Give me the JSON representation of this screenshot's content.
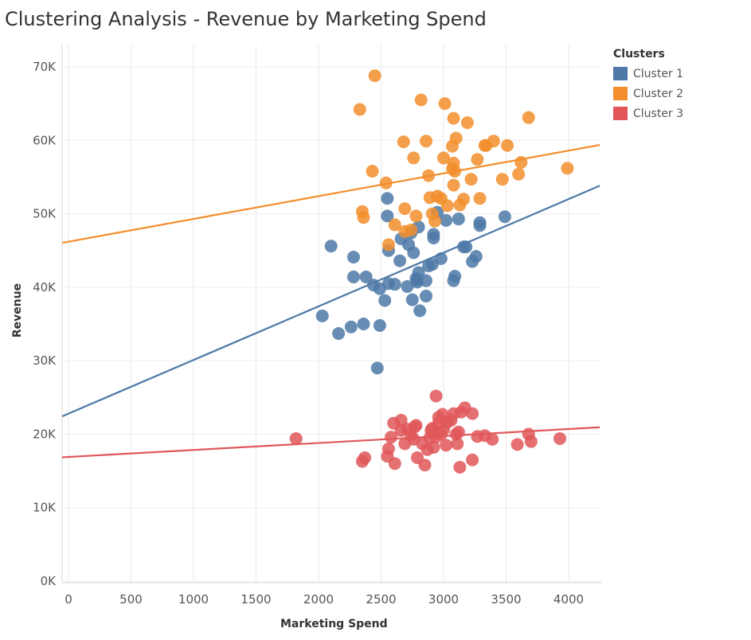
{
  "chart_data": {
    "type": "scatter",
    "title": "Clustering Analysis - Revenue by Marketing Spend",
    "xlabel": "Marketing Spend",
    "ylabel": "Revenue",
    "xlim": [
      -50,
      4250
    ],
    "ylim": [
      -1000,
      72000
    ],
    "x_ticks": [
      0,
      500,
      1000,
      1500,
      2000,
      2500,
      3000,
      3500,
      4000
    ],
    "x_tick_labels": [
      "0",
      "500",
      "1000",
      "1500",
      "2000",
      "2500",
      "3000",
      "3500",
      "4000"
    ],
    "y_ticks": [
      0,
      10000,
      20000,
      30000,
      40000,
      50000,
      60000,
      70000
    ],
    "y_tick_labels": [
      "0K",
      "10K",
      "20K",
      "30K",
      "40K",
      "50K",
      "60K",
      "70K"
    ],
    "grid": true,
    "legend_title": "Clusters",
    "legend_position": "right",
    "series": [
      {
        "name": "Cluster 1",
        "color": "#4e79a7",
        "trend": {
          "intercept": 22800,
          "slope": 7.3
        },
        "points": [
          [
            2100,
            45600
          ],
          [
            2030,
            36100
          ],
          [
            2160,
            33700
          ],
          [
            2260,
            34600
          ],
          [
            2360,
            35000
          ],
          [
            2490,
            34800
          ],
          [
            2470,
            29000
          ],
          [
            2280,
            44100
          ],
          [
            2280,
            41400
          ],
          [
            2380,
            41400
          ],
          [
            2440,
            40300
          ],
          [
            2490,
            39800
          ],
          [
            2530,
            38200
          ],
          [
            2560,
            40500
          ],
          [
            2610,
            40400
          ],
          [
            2650,
            43600
          ],
          [
            2560,
            45000
          ],
          [
            2660,
            46600
          ],
          [
            2720,
            45800
          ],
          [
            2550,
            49700
          ],
          [
            2550,
            52100
          ],
          [
            2760,
            44700
          ],
          [
            2800,
            48200
          ],
          [
            2780,
            41200
          ],
          [
            2800,
            42000
          ],
          [
            2790,
            40700
          ],
          [
            2710,
            40100
          ],
          [
            2750,
            38300
          ],
          [
            2810,
            36800
          ],
          [
            2860,
            38800
          ],
          [
            2860,
            40900
          ],
          [
            2880,
            42900
          ],
          [
            2910,
            43100
          ],
          [
            2980,
            43900
          ],
          [
            2920,
            46700
          ],
          [
            2920,
            47200
          ],
          [
            2950,
            50200
          ],
          [
            3020,
            49100
          ],
          [
            3090,
            41500
          ],
          [
            3080,
            40900
          ],
          [
            3120,
            49300
          ],
          [
            3160,
            45500
          ],
          [
            3180,
            45500
          ],
          [
            3230,
            43500
          ],
          [
            3260,
            44200
          ],
          [
            3290,
            48400
          ],
          [
            3290,
            48800
          ],
          [
            3490,
            49600
          ],
          [
            2790,
            41000
          ],
          [
            2740,
            47400
          ]
        ]
      },
      {
        "name": "Cluster 2",
        "color": "#f28e2b",
        "trend": {
          "intercept": 46200,
          "slope": 3.1
        },
        "points": [
          [
            2330,
            64200
          ],
          [
            2450,
            68800
          ],
          [
            2430,
            55800
          ],
          [
            2350,
            50300
          ],
          [
            2360,
            49500
          ],
          [
            2540,
            54200
          ],
          [
            2560,
            45800
          ],
          [
            2610,
            48500
          ],
          [
            2680,
            59800
          ],
          [
            2690,
            50700
          ],
          [
            2690,
            47600
          ],
          [
            2740,
            47800
          ],
          [
            2760,
            57600
          ],
          [
            2780,
            49700
          ],
          [
            2820,
            65500
          ],
          [
            2860,
            59900
          ],
          [
            2880,
            55200
          ],
          [
            2890,
            52200
          ],
          [
            2910,
            50000
          ],
          [
            2930,
            49000
          ],
          [
            2950,
            52400
          ],
          [
            2980,
            52100
          ],
          [
            3000,
            57600
          ],
          [
            3010,
            65000
          ],
          [
            3030,
            51100
          ],
          [
            3070,
            59200
          ],
          [
            3080,
            56900
          ],
          [
            3090,
            55800
          ],
          [
            3080,
            53900
          ],
          [
            3100,
            60300
          ],
          [
            3080,
            63000
          ],
          [
            3130,
            51200
          ],
          [
            3160,
            52000
          ],
          [
            3190,
            62400
          ],
          [
            3220,
            54700
          ],
          [
            3270,
            57400
          ],
          [
            3290,
            52100
          ],
          [
            3330,
            59300
          ],
          [
            3340,
            59300
          ],
          [
            3400,
            59900
          ],
          [
            3470,
            54700
          ],
          [
            3510,
            59300
          ],
          [
            3600,
            55400
          ],
          [
            3620,
            57000
          ],
          [
            3680,
            63100
          ],
          [
            3990,
            56200
          ],
          [
            3070,
            56100
          ]
        ]
      },
      {
        "name": "Cluster 3",
        "color": "#e15759",
        "trend": {
          "intercept": 16900,
          "slope": 0.95
        },
        "points": [
          [
            1820,
            19400
          ],
          [
            2350,
            16300
          ],
          [
            2370,
            16800
          ],
          [
            2550,
            17000
          ],
          [
            2560,
            18000
          ],
          [
            2580,
            19600
          ],
          [
            2600,
            21500
          ],
          [
            2610,
            16000
          ],
          [
            2660,
            20500
          ],
          [
            2660,
            21900
          ],
          [
            2690,
            18700
          ],
          [
            2710,
            20700
          ],
          [
            2740,
            19800
          ],
          [
            2760,
            19300
          ],
          [
            2770,
            21000
          ],
          [
            2780,
            21200
          ],
          [
            2790,
            16800
          ],
          [
            2830,
            18700
          ],
          [
            2850,
            15800
          ],
          [
            2870,
            17900
          ],
          [
            2890,
            19500
          ],
          [
            2900,
            20500
          ],
          [
            2910,
            20800
          ],
          [
            2920,
            18200
          ],
          [
            2940,
            19600
          ],
          [
            2960,
            21500
          ],
          [
            2960,
            22300
          ],
          [
            2980,
            20000
          ],
          [
            2990,
            22700
          ],
          [
            3000,
            20600
          ],
          [
            3020,
            18500
          ],
          [
            3030,
            21600
          ],
          [
            3060,
            21900
          ],
          [
            3080,
            22800
          ],
          [
            3100,
            20000
          ],
          [
            3110,
            18700
          ],
          [
            3120,
            20300
          ],
          [
            3130,
            15500
          ],
          [
            3140,
            23000
          ],
          [
            3170,
            23600
          ],
          [
            3230,
            16500
          ],
          [
            3230,
            22800
          ],
          [
            3270,
            19700
          ],
          [
            3330,
            19800
          ],
          [
            3390,
            19300
          ],
          [
            3590,
            18600
          ],
          [
            3680,
            20000
          ],
          [
            3700,
            19000
          ],
          [
            3930,
            19400
          ],
          [
            2940,
            25200
          ]
        ]
      }
    ]
  }
}
